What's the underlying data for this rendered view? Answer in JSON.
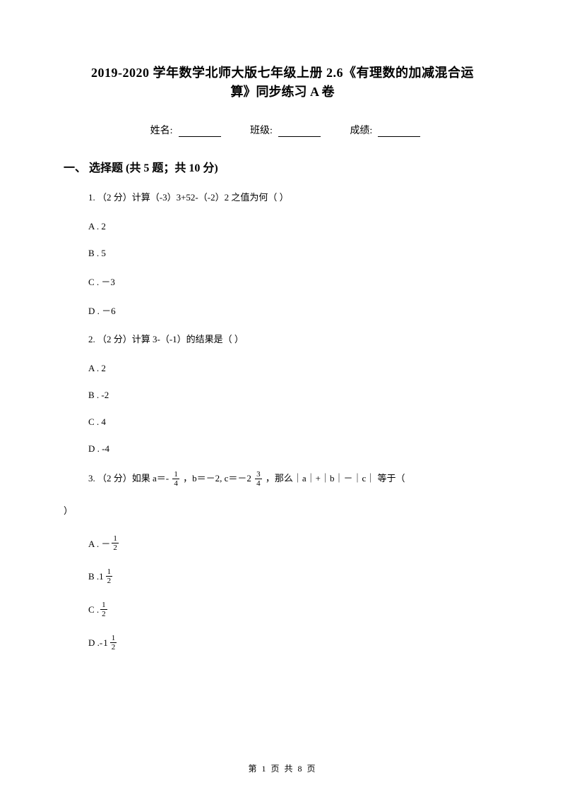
{
  "title_line1": "2019-2020 学年数学北师大版七年级上册 2.6《有理数的加减混合运",
  "title_line2": "算》同步练习 A 卷",
  "info": {
    "name_label": "姓名:",
    "class_label": "班级:",
    "score_label": "成绩:"
  },
  "section": "一、 选择题  (共 5 题；共 10 分)",
  "q1": {
    "text": "1.  （2 分）计算（-3）3+52-（-2）2 之值为何（     ）",
    "A": "A .  2",
    "B": "B .  5",
    "C": "C .  －3",
    "D": "D .  －6"
  },
  "q2": {
    "text": "2.  （2 分）计算 3-（-1）的结果是（     ）",
    "A": "A .  2",
    "B": "B .  -2",
    "C": "C .  4",
    "D": "D .  -4"
  },
  "q3": {
    "part1": "3.  （2 分）如果 a＝-",
    "frac1_num": "1",
    "frac1_den": "4",
    "part2": "  ，b＝－2,  c＝－2 ",
    "frac2_num": "3",
    "frac2_den": "4",
    "part3": "  ，那么｜a｜+｜b｜－｜c｜   等于（   ",
    "close": "）",
    "A_label": "A .  －  ",
    "A_num": "1",
    "A_den": "2",
    "B_label": "B .   ",
    "B_int": "1",
    "B_num": "1",
    "B_den": "2",
    "C_label": "C .    ",
    "C_num": "1",
    "C_den": "2",
    "D_label": "D .   ",
    "D_minus": "-",
    "D_int": "1",
    "D_num": "1",
    "D_den": "2"
  },
  "footer": "第  1  页  共  8  页"
}
